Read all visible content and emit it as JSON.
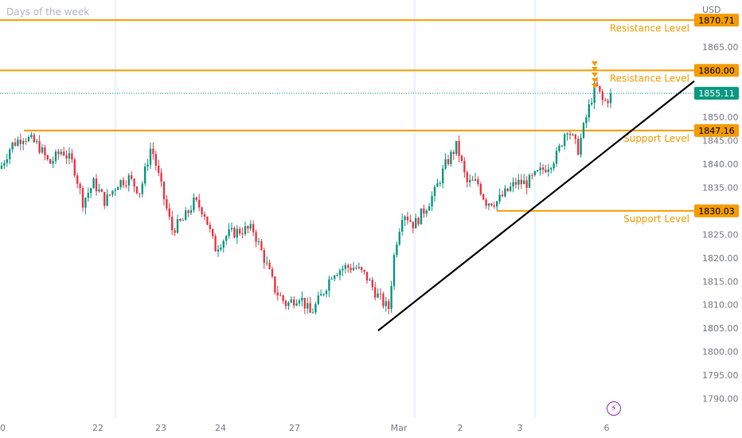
{
  "header": {
    "title": "Days of the week",
    "currency": "USD"
  },
  "icons": {
    "bolt": "lightning-icon"
  },
  "chart_data": {
    "type": "candlestick",
    "ylim": [
      1786,
      1875
    ],
    "y_ticks": [
      1790,
      1795,
      1800,
      1805,
      1810,
      1815,
      1820,
      1825,
      1830,
      1835,
      1840,
      1845,
      1850,
      1855,
      1860,
      1865
    ],
    "y_tick_labels": [
      "1790.00",
      "1795.00",
      "1800.00",
      "1805.00",
      "1810.00",
      "1815.00",
      "1820.00",
      "1825.00",
      "1830.00",
      "1835.00",
      "1840.00",
      "1845.00",
      "1850.00",
      "1855.00",
      "1860.00",
      "1865.00"
    ],
    "x_tick_labels": [
      "0",
      "22",
      "23",
      "24",
      "27",
      "Mar",
      "2",
      "3",
      "6"
    ],
    "session_separators": [
      "22",
      "Mar",
      "3"
    ],
    "last_price": {
      "value": 1855.11,
      "label": "1855.11",
      "color": "#089981"
    },
    "levels": [
      {
        "name": "Resistance Level",
        "value": 1870.71,
        "label": "1870.71"
      },
      {
        "name": "Resistance Level",
        "value": 1860.0,
        "label": "1860.00"
      },
      {
        "name": "Support Level",
        "value": 1847.16,
        "label": "1847.16"
      },
      {
        "name": "Support Level",
        "value": 1830.03,
        "label": "1830.03"
      }
    ],
    "trendline": {
      "from_price": 1804.5,
      "to_price": 1857.7,
      "color": "#000000"
    },
    "colors": {
      "up": "#089981",
      "down": "#f23645",
      "level": "#f59b00",
      "grid": "#f0f3fa"
    },
    "price_path": [
      [
        0,
        1839
      ],
      [
        14,
        1844
      ],
      [
        30,
        1846
      ],
      [
        48,
        1844
      ],
      [
        62,
        1840
      ],
      [
        78,
        1843
      ],
      [
        92,
        1840
      ],
      [
        104,
        1832
      ],
      [
        118,
        1836
      ],
      [
        132,
        1832
      ],
      [
        148,
        1836
      ],
      [
        162,
        1837
      ],
      [
        176,
        1834
      ],
      [
        190,
        1844
      ],
      [
        204,
        1834
      ],
      [
        216,
        1826
      ],
      [
        230,
        1828
      ],
      [
        244,
        1832
      ],
      [
        256,
        1830
      ],
      [
        270,
        1822
      ],
      [
        286,
        1825
      ],
      [
        306,
        1826
      ],
      [
        318,
        1826
      ],
      [
        336,
        1818
      ],
      [
        346,
        1813
      ],
      [
        360,
        1810
      ],
      [
        376,
        1812
      ],
      [
        390,
        1808
      ],
      [
        404,
        1812
      ],
      [
        418,
        1817
      ],
      [
        434,
        1818
      ],
      [
        446,
        1818
      ],
      [
        460,
        1816
      ],
      [
        474,
        1812
      ],
      [
        488,
        1809
      ],
      [
        496,
        1822
      ],
      [
        506,
        1830
      ],
      [
        520,
        1827
      ],
      [
        532,
        1830
      ],
      [
        546,
        1834
      ],
      [
        560,
        1840
      ],
      [
        574,
        1844
      ],
      [
        586,
        1836
      ],
      [
        600,
        1836
      ],
      [
        610,
        1832
      ],
      [
        624,
        1832
      ],
      [
        636,
        1834
      ],
      [
        648,
        1836
      ],
      [
        662,
        1836
      ],
      [
        676,
        1838
      ],
      [
        690,
        1840
      ],
      [
        700,
        1842
      ],
      [
        712,
        1848
      ],
      [
        726,
        1843
      ],
      [
        738,
        1851
      ],
      [
        748,
        1857
      ],
      [
        758,
        1853
      ],
      [
        770,
        1855
      ]
    ]
  }
}
